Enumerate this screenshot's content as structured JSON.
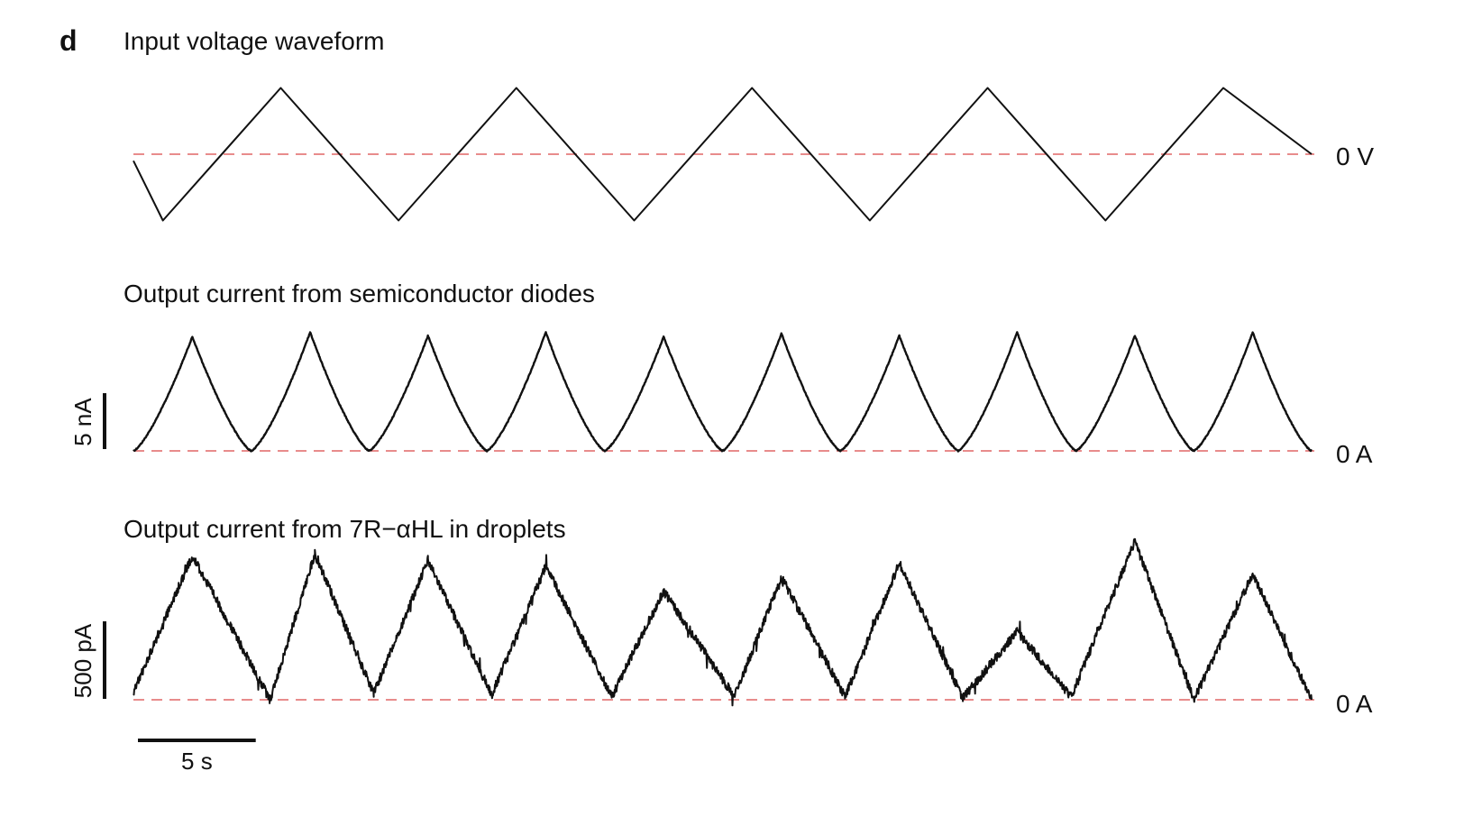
{
  "panel_label": "d",
  "x_scalebar": {
    "label": "5 s",
    "value": 5,
    "unit": "s"
  },
  "chart_data": [
    {
      "type": "line",
      "title": "Input voltage waveform",
      "zero_label": "0 V",
      "waveform": "triangle",
      "series": [
        {
          "x": [
            0,
            1.25,
            6.25,
            11.25,
            16.25,
            21.25,
            26.25,
            31.25,
            36.25,
            41.25,
            46.25,
            50
          ],
          "y": [
            -0.1,
            -1,
            1,
            -1,
            1,
            -1,
            1,
            -1,
            1,
            -1,
            1,
            0
          ]
        }
      ],
      "ylim": [
        -1.1,
        1.1
      ],
      "grid": false
    },
    {
      "type": "line",
      "title": "Output current from semiconductor diodes",
      "zero_label": "0 A",
      "scalebar": {
        "label": "5 nA",
        "value": 5
      },
      "series": [
        {
          "peaks_x": [
            2.5,
            7.5,
            12.5,
            17.5,
            22.5,
            27.5,
            32.5,
            37.5,
            42.5,
            47.5
          ],
          "peaks_y": [
            10.2,
            10.6,
            10.3,
            10.6,
            10.2,
            10.5,
            10.3,
            10.6,
            10.3,
            10.6
          ],
          "troughs_x": [
            0,
            5,
            10,
            15,
            20,
            25,
            30,
            35,
            40,
            45,
            50
          ],
          "troughs_y": [
            0,
            0,
            0,
            0,
            0,
            0,
            0,
            0,
            0,
            0,
            0
          ]
        }
      ],
      "ylim": [
        0,
        11
      ],
      "grid": false
    },
    {
      "type": "line",
      "title": "Output current from 7R−αHL in droplets",
      "zero_label": "0 A",
      "scalebar": {
        "label": "500 pA",
        "value": 500
      },
      "series": [
        {
          "peaks_x": [
            2.5,
            7.7,
            12.5,
            17.5,
            22.5,
            27.5,
            32.5,
            37.5,
            42.5,
            47.5
          ],
          "peaks_y": [
            930,
            940,
            900,
            860,
            700,
            790,
            880,
            440,
            1020,
            810
          ],
          "troughs_x": [
            0,
            5.8,
            10.2,
            15.2,
            20.3,
            25.5,
            30.2,
            35.2,
            39.8,
            45.0,
            50
          ],
          "troughs_y": [
            50,
            0,
            40,
            30,
            20,
            20,
            20,
            10,
            20,
            0,
            0
          ]
        }
      ],
      "ylim": [
        0,
        1100
      ],
      "grid": false
    }
  ]
}
